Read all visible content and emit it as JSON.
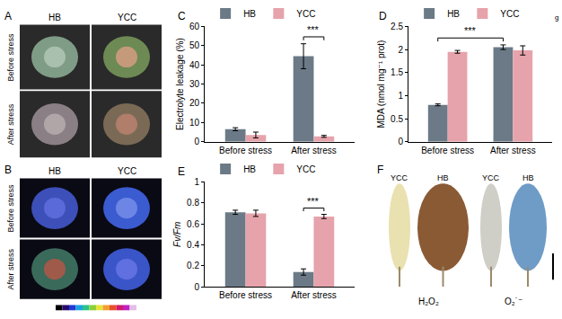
{
  "chart_data": [
    {
      "type": "bar",
      "panel": "C",
      "categories": [
        "Before stress",
        "After stress"
      ],
      "y_label": "Electrolyte leakage (%)",
      "ylim": [
        0,
        60
      ],
      "yticks": [
        0,
        10,
        20,
        30,
        40,
        50,
        60
      ],
      "legend": "top-left",
      "series": [
        {
          "name": "HB",
          "color": "#6b7a86",
          "values": [
            6.5,
            44.5
          ],
          "errors": [
            0.8,
            6.5
          ]
        },
        {
          "name": "YCC",
          "color": "#e6a3ab",
          "values": [
            3.5,
            2.8
          ],
          "errors": [
            1.5,
            0.5
          ]
        }
      ],
      "annotations": [
        {
          "text": "***",
          "from": {
            "series": "HB",
            "category": "After stress"
          },
          "to": {
            "series": "YCC",
            "category": "After stress"
          }
        }
      ]
    },
    {
      "type": "bar",
      "panel": "D",
      "corner_text": "g",
      "categories": [
        "Before stress",
        "After stress"
      ],
      "y_label": "MDA (nmol mg⁻¹ prot)",
      "ylim": [
        0,
        2.5
      ],
      "yticks": [
        0,
        0.5,
        1,
        1.5,
        2,
        2.5
      ],
      "legend": "top-left",
      "series": [
        {
          "name": "HB",
          "color": "#6b7a86",
          "values": [
            0.8,
            2.05
          ],
          "errors": [
            0.02,
            0.05
          ]
        },
        {
          "name": "YCC",
          "color": "#e6a3ab",
          "values": [
            1.95,
            1.98
          ],
          "errors": [
            0.03,
            0.1
          ]
        }
      ],
      "annotations": [
        {
          "text": "***",
          "from": {
            "series": "HB",
            "category": "Before stress"
          },
          "to": {
            "series": "HB",
            "category": "After stress"
          }
        }
      ]
    },
    {
      "type": "bar",
      "panel": "E",
      "categories": [
        "Before stress",
        "After stress"
      ],
      "y_label": "Fv/Fm",
      "ylim": [
        0,
        1
      ],
      "yticks": [
        0,
        0.2,
        0.4,
        0.6,
        0.8,
        1
      ],
      "legend": "top-left",
      "series": [
        {
          "name": "HB",
          "color": "#6b7a86",
          "values": [
            0.71,
            0.14
          ],
          "errors": [
            0.02,
            0.03
          ]
        },
        {
          "name": "YCC",
          "color": "#e6a3ab",
          "values": [
            0.7,
            0.67
          ],
          "errors": [
            0.03,
            0.02
          ]
        }
      ],
      "annotations": [
        {
          "text": "***",
          "from": {
            "series": "HB",
            "category": "After stress"
          },
          "to": {
            "series": "YCC",
            "category": "After stress"
          }
        }
      ]
    }
  ],
  "panels": {
    "A": {
      "letter": "A",
      "columns": [
        "HB",
        "YCC"
      ],
      "rows": [
        "Before stress",
        "After stress"
      ]
    },
    "B": {
      "letter": "B",
      "columns": [
        "HB",
        "YCC"
      ],
      "rows": [
        "Before stress",
        "After stress"
      ]
    },
    "F": {
      "letter": "F",
      "groups": [
        {
          "label": "H₂O₂",
          "columns": [
            "YCC",
            "HB"
          ]
        },
        {
          "label": "O₂˙⁻",
          "columns": [
            "YCC",
            "HB"
          ]
        }
      ]
    }
  }
}
